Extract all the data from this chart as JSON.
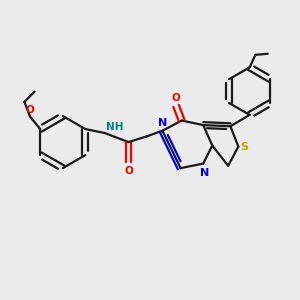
{
  "background_color": "#ebebeb",
  "bond_color": "#1a1a1a",
  "N_color": "#0000ee",
  "O_color": "#ee0000",
  "S_color": "#bbaa00",
  "NH_color": "#008888",
  "figsize": [
    3.0,
    3.0
  ],
  "dpi": 100,
  "xlim": [
    -0.75,
    0.55
  ],
  "ylim": [
    -0.05,
    0.85
  ]
}
